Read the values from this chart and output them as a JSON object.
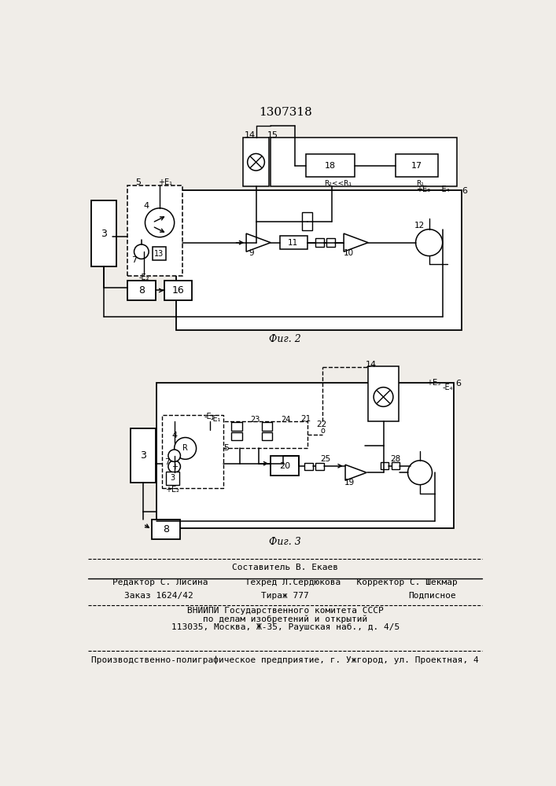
{
  "title": "1307318",
  "bg_color": "#f0ede8",
  "fig_width": 7.07,
  "fig_height": 10.0,
  "footer": {
    "line1": "Составитель В. Екаев",
    "line2": "Редактор С. Лисина       Техред Л.Сердюкова   Корректор С. Шекмар",
    "line3_a": "Заказ 1624/42",
    "line3_b": "Тираж 777",
    "line3_c": "Подписное",
    "line4": "ВНИИПИ Государственного комитета СССР",
    "line5": "по делам изобретений и открытий",
    "line6": "113035, Москва, Ж-35, Раушская наб., д. 4/5",
    "line7": "Производственно-полиграфическое предприятие, г. Ужгород, ул. Проектная, 4"
  }
}
